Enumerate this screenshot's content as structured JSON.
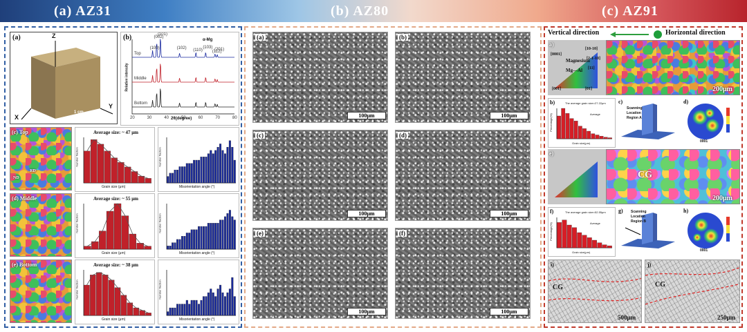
{
  "banner": {
    "a": "(a)  AZ31",
    "b": "(b)  AZ80",
    "c": "(c)  AZ91"
  },
  "az31": {
    "cube_label": "(a)",
    "cube_axes": {
      "z": "Z",
      "y": "Y",
      "x": "X"
    },
    "cube_scale": "1 cm",
    "xrd": {
      "label": "(b)",
      "legend": "α-Mg",
      "xlabel": "2θ(degree)",
      "ylabel": "Relative intensity",
      "series": [
        "Top",
        "Middle",
        "Bottom"
      ],
      "xticks": [
        "20",
        "30",
        "40",
        "50",
        "60",
        "70",
        "80"
      ],
      "peaks": [
        "(100)",
        "(002)",
        "(101)",
        "(102)",
        "(110)",
        "(103)",
        "(112)",
        "(201)"
      ]
    },
    "rows": [
      {
        "map_label": "(c) Top",
        "avg": "Average size: ~ 47 μm",
        "grain_xlabel": "Grain size (μm)",
        "mis_xlabel": "Misorientation angle (°)"
      },
      {
        "map_label": "(d) Middle",
        "avg": "Average size: ~ 55 μm",
        "grain_xlabel": "Grain size (μm)",
        "mis_xlabel": "Misorientation angle (°)"
      },
      {
        "map_label": "(e) Bottom",
        "avg": "Average size: ~ 38 μm",
        "grain_xlabel": "Grain size (μm)",
        "mis_xlabel": "Misorientation angle (°)"
      }
    ],
    "ylabel": "Number fraction",
    "ipf": {
      "nd": "ND",
      "rd": "RD"
    }
  },
  "az80": {
    "tiles": [
      {
        "label": "(a)",
        "scale": "100μm"
      },
      {
        "label": "(b)",
        "scale": "100μm"
      },
      {
        "label": "(c)",
        "scale": "100μm"
      },
      {
        "label": "(d)",
        "scale": "100μm"
      },
      {
        "label": "(e)",
        "scale": "100μm"
      },
      {
        "label": "(f)",
        "scale": "100μm"
      }
    ]
  },
  "az91": {
    "vertical": "Vertical direction",
    "horizontal": "Horizontal direction",
    "a_label": "a)",
    "a_scale": "200μm",
    "ipf_a": {
      "t1": "[0001]",
      "t2": "[10-10]",
      "t3": "[2-1-10]",
      "m": "Magnesium",
      "mg": "Mg—Al",
      "h": "[11]",
      "b1": "[001]",
      "b2": "[01]"
    },
    "b_label": "b)",
    "b_note": "The average grain size=27.22μm",
    "b_legend": "Average",
    "b_ylabel": "Percentage(%)",
    "b_xlabel": "Grain size(μm)",
    "c_label": "c)",
    "c_note": [
      "Scanning",
      "Location",
      "Region A"
    ],
    "d_label": "d)",
    "d_dir": "0001",
    "e_label": "e)",
    "cg": "CG",
    "e_scale": "200μm",
    "f_label": "f)",
    "f_note": "The average grain size=52.55μm",
    "f_legend": "Average",
    "f_ylabel": "Percentage(%)",
    "f_xlabel": "Grain size(μm)",
    "g_label": "g)",
    "g_note": [
      "Scanning",
      "Location",
      "Region B"
    ],
    "h_label": "h)",
    "h_dir": "0001",
    "i_label": "i)",
    "i_cg": "CG",
    "i_scale": "500μm",
    "j_label": "j)",
    "j_cg": "CG",
    "j_scale": "250μm"
  },
  "chart_data": [
    {
      "type": "bar",
      "title": "(c) Top grain size",
      "xlabel": "Grain size (μm)",
      "ylabel": "Number fraction",
      "values": [
        0.14,
        0.19,
        0.17,
        0.14,
        0.11,
        0.09,
        0.07,
        0.05,
        0.03,
        0.02
      ],
      "ylim": [
        0,
        0.2
      ]
    },
    {
      "type": "bar",
      "title": "(c) Top misorientation",
      "xlabel": "Misorientation angle (°)",
      "ylabel": "Number fraction",
      "values": [
        0.02,
        0.03,
        0.03,
        0.04,
        0.04,
        0.05,
        0.05,
        0.05,
        0.06,
        0.06,
        0.06,
        0.07,
        0.07,
        0.07,
        0.08,
        0.08,
        0.08,
        0.09,
        0.1,
        0.09,
        0.1,
        0.11,
        0.12,
        0.1,
        0.09,
        0.11,
        0.13,
        0.11,
        0.07
      ],
      "ylim": [
        0,
        0.14
      ]
    },
    {
      "type": "bar",
      "title": "(d) Middle grain size",
      "xlabel": "Grain size (μm)",
      "ylabel": "Number fraction",
      "values": [
        0.02,
        0.05,
        0.12,
        0.25,
        0.3,
        0.22,
        0.1,
        0.04,
        0.02
      ],
      "ylim": [
        0,
        0.3
      ]
    },
    {
      "type": "bar",
      "title": "(d) Middle misorientation",
      "xlabel": "Misorientation angle (°)",
      "ylabel": "Number fraction",
      "values": [
        0.01,
        0.01,
        0.02,
        0.02,
        0.03,
        0.03,
        0.04,
        0.04,
        0.05,
        0.05,
        0.06,
        0.06,
        0.06,
        0.07,
        0.07,
        0.07,
        0.07,
        0.08,
        0.08,
        0.08,
        0.08,
        0.08,
        0.09,
        0.09,
        0.1,
        0.11,
        0.12,
        0.1,
        0.09
      ],
      "ylim": [
        0,
        0.14
      ]
    },
    {
      "type": "bar",
      "title": "(e) Bottom grain size",
      "xlabel": "Grain size (μm)",
      "ylabel": "Number fraction",
      "values": [
        0.12,
        0.16,
        0.17,
        0.16,
        0.14,
        0.11,
        0.08,
        0.05,
        0.03,
        0.02,
        0.01
      ],
      "ylim": [
        0,
        0.18
      ]
    },
    {
      "type": "bar",
      "title": "(e) Bottom misorientation",
      "xlabel": "Misorientation angle (°)",
      "ylabel": "Number fraction",
      "values": [
        0.01,
        0.02,
        0.02,
        0.02,
        0.03,
        0.03,
        0.03,
        0.03,
        0.04,
        0.03,
        0.04,
        0.04,
        0.04,
        0.03,
        0.04,
        0.05,
        0.05,
        0.06,
        0.07,
        0.06,
        0.05,
        0.07,
        0.08,
        0.06,
        0.05,
        0.06,
        0.07,
        0.1,
        0.05
      ],
      "ylim": [
        0,
        0.12
      ]
    },
    {
      "type": "bar",
      "title": "AZ91 b) grain size",
      "values": [
        9,
        12,
        10,
        8,
        7,
        5,
        4,
        3,
        2,
        1.5,
        1,
        0.6,
        0.4
      ],
      "ylim": [
        0,
        12
      ]
    },
    {
      "type": "bar",
      "title": "AZ91 f) grain size",
      "values": [
        10,
        11,
        9,
        8,
        6,
        5,
        4,
        3,
        2,
        1.2,
        0.8
      ],
      "ylim": [
        0,
        12
      ]
    }
  ]
}
